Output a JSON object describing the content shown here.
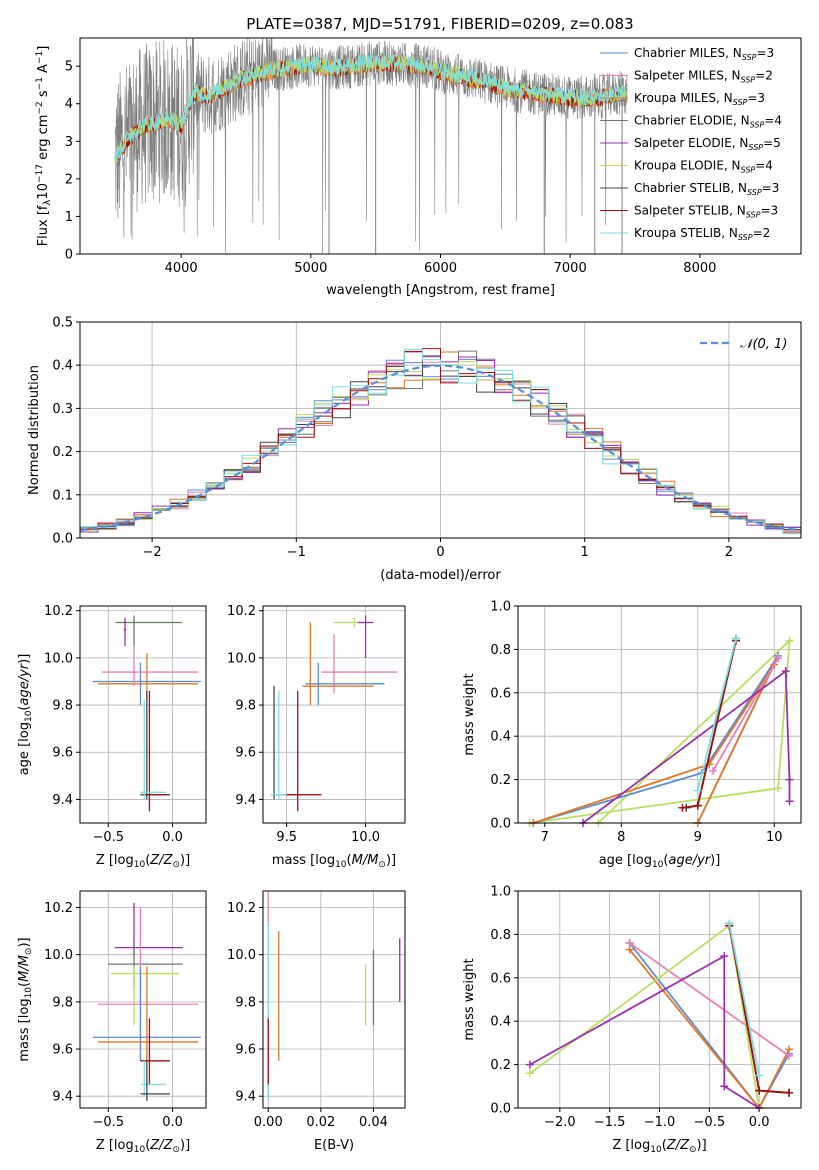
{
  "figure_title": "PLATE=0387, MJD=51791, FIBERID=0209, z=0.083",
  "colors": {
    "chabrier_miles": "#5B8DD6",
    "salpeter_miles": "#E880B8",
    "kroupa_miles": "#E07828",
    "chabrier_elodie": "#6B7B6B",
    "salpeter_elodie": "#9A2FB0",
    "kroupa_elodie": "#B8E060",
    "chabrier_stelib": "#444444",
    "salpeter_stelib": "#A01010",
    "kroupa_stelib": "#80DDE0",
    "noise": "#808080"
  },
  "chart_data": [
    {
      "id": "spectrum",
      "type": "line",
      "xlabel": "wavelength [Angstrom, rest frame]",
      "ylabel": "Flux [f_λ10^-17 erg cm^-2 s^-1 A^-1]",
      "xlim": [
        3220,
        8780
      ],
      "ylim": [
        0,
        5.75
      ],
      "xticks": [
        4000,
        5000,
        6000,
        7000,
        8000
      ],
      "yticks": [
        0,
        1,
        2,
        3,
        4,
        5
      ],
      "legend": "top-right",
      "legend_entries": [
        {
          "label": "Chabrier MILES, N_SSP=3",
          "color": "#5B8DD6"
        },
        {
          "label": "Salpeter MILES, N_SSP=2",
          "color": "#E880B8"
        },
        {
          "label": "Kroupa MILES, N_SSP=3",
          "color": "#E07828"
        },
        {
          "label": "Chabrier ELODIE, N_SSP=4",
          "color": "#6B7B6B"
        },
        {
          "label": "Salpeter ELODIE, N_SSP=5",
          "color": "#9A2FB0"
        },
        {
          "label": "Kroupa ELODIE, N_SSP=4",
          "color": "#B8E060"
        },
        {
          "label": "Chabrier STELIB, N_SSP=3",
          "color": "#444444"
        },
        {
          "label": "Salpeter STELIB, N_SSP=3",
          "color": "#A01010"
        },
        {
          "label": "Kroupa STELIB, N_SSP=2",
          "color": "#80DDE0"
        }
      ],
      "model_continuum": {
        "x": [
          3500,
          3600,
          3700,
          3800,
          3900,
          4000,
          4100,
          4200,
          4300,
          4400,
          4500,
          4700,
          4900,
          5000,
          5200,
          5400,
          5500,
          5700,
          5900,
          6000,
          6200,
          6400,
          6500,
          6700,
          6900,
          7000,
          7200,
          7400
        ],
        "y": [
          2.6,
          3.1,
          3.4,
          3.5,
          3.6,
          3.4,
          4.3,
          4.2,
          4.35,
          4.55,
          4.7,
          4.9,
          5.0,
          5.05,
          4.95,
          5.05,
          5.1,
          5.05,
          5.0,
          4.85,
          4.7,
          4.55,
          4.4,
          4.3,
          4.2,
          4.15,
          4.15,
          4.3
        ]
      }
    },
    {
      "id": "residuals",
      "type": "line",
      "xlabel": "(data-model)/error",
      "ylabel": "Normed distribution",
      "xlim": [
        -2.5,
        2.5
      ],
      "ylim": [
        0,
        0.5
      ],
      "xticks": [
        -2,
        -1,
        0,
        1,
        2
      ],
      "xtick_labels": [
        "−2",
        "−1",
        "0",
        "1",
        "2"
      ],
      "yticks": [
        0.0,
        0.1,
        0.2,
        0.3,
        0.4,
        0.5
      ],
      "ytick_labels": [
        "0.0",
        "0.1",
        "0.2",
        "0.3",
        "0.4",
        "0.5"
      ],
      "gaussian_label": "𝒩(0, 1)",
      "gaussian_color": "#5B8DD6",
      "legend": "top-right"
    },
    {
      "id": "age_vs_Z",
      "type": "scatter",
      "xlabel": "Z [log10(Z/Z⊙)]",
      "ylabel": "age [log10(age/yr)]",
      "xlim": [
        -0.72,
        0.26
      ],
      "ylim": [
        9.3,
        10.22
      ],
      "xticks": [
        -0.5,
        0.0
      ],
      "xtick_labels": [
        "−0.5",
        "0.0"
      ],
      "yticks": [
        9.4,
        9.6,
        9.8,
        10.0,
        10.2
      ],
      "ytick_labels": [
        "9.4",
        "9.6",
        "9.8",
        "10.0",
        "10.2"
      ]
    },
    {
      "id": "age_vs_mass",
      "type": "scatter",
      "xlabel": "mass [log10(M/M⊙)]",
      "xlim": [
        9.35,
        10.25
      ],
      "ylim": [
        9.3,
        10.22
      ],
      "xticks": [
        9.5,
        10.0
      ],
      "xtick_labels": [
        "9.5",
        "10.0"
      ],
      "yticks": [
        9.4,
        9.6,
        9.8,
        10.0,
        10.2
      ],
      "ytick_labels": [
        "9.4",
        "9.6",
        "9.8",
        "10.0",
        "10.2"
      ]
    },
    {
      "id": "massweight_vs_age",
      "type": "line",
      "xlabel": "age [log10(age/yr)]",
      "ylabel": "mass weight",
      "xlim": [
        6.65,
        10.35
      ],
      "ylim": [
        0,
        1
      ],
      "xticks": [
        7,
        8,
        9,
        10
      ],
      "xtick_labels": [
        "7",
        "8",
        "9",
        "10"
      ],
      "yticks": [
        0,
        0.2,
        0.4,
        0.6,
        0.8,
        1.0
      ],
      "ytick_labels": [
        "0.0",
        "0.2",
        "0.4",
        "0.6",
        "0.8",
        "1.0"
      ],
      "series": [
        {
          "key": "kroupa_elodie",
          "x": [
            6.8,
            10.05,
            10.2,
            7.7
          ],
          "y": [
            0.0,
            0.16,
            0.84,
            0.0
          ]
        },
        {
          "key": "chabrier_miles",
          "x": [
            6.85,
            9.05,
            10.05,
            9.0
          ],
          "y": [
            0.0,
            0.23,
            0.77,
            0.0
          ]
        },
        {
          "key": "kroupa_miles",
          "x": [
            6.85,
            9.15,
            10.0,
            9.0
          ],
          "y": [
            0.0,
            0.27,
            0.73,
            0.0
          ]
        },
        {
          "key": "salpeter_miles",
          "x": [
            9.2,
            10.05
          ],
          "y": [
            0.24,
            0.76
          ]
        },
        {
          "key": "salpeter_elodie",
          "x": [
            7.5,
            10.15,
            10.2,
            10.2
          ],
          "y": [
            0.0,
            0.7,
            0.2,
            0.1
          ]
        },
        {
          "key": "chabrier_stelib",
          "x": [
            8.85,
            9.0,
            9.5
          ],
          "y": [
            0.07,
            0.08,
            0.85
          ]
        },
        {
          "key": "salpeter_stelib",
          "x": [
            8.8,
            9.0,
            9.5
          ],
          "y": [
            0.07,
            0.08,
            0.84
          ]
        },
        {
          "key": "kroupa_stelib",
          "x": [
            9.0,
            9.5
          ],
          "y": [
            0.15,
            0.85
          ]
        }
      ]
    },
    {
      "id": "mass_vs_Z",
      "type": "scatter",
      "xlabel": "Z [log10(Z/Z⊙)]",
      "ylabel": "mass [log10(M/M⊙)]",
      "xlim": [
        -0.72,
        0.26
      ],
      "ylim": [
        9.35,
        10.27
      ],
      "xticks": [
        -0.5,
        0.0
      ],
      "xtick_labels": [
        "−0.5",
        "0.0"
      ],
      "yticks": [
        9.4,
        9.6,
        9.8,
        10.0,
        10.2
      ],
      "ytick_labels": [
        "9.4",
        "9.6",
        "9.8",
        "10.0",
        "10.2"
      ]
    },
    {
      "id": "mass_vs_ebv",
      "type": "scatter",
      "xlabel": "E(B-V)",
      "xlim": [
        -0.002,
        0.052
      ],
      "ylim": [
        9.35,
        10.27
      ],
      "xticks": [
        0.0,
        0.02,
        0.04
      ],
      "xtick_labels": [
        "0.00",
        "0.02",
        "0.04"
      ],
      "yticks": [
        9.4,
        9.6,
        9.8,
        10.0,
        10.2
      ],
      "ytick_labels": [
        "9.4",
        "9.6",
        "9.8",
        "10.0",
        "10.2"
      ]
    },
    {
      "id": "massweight_vs_Z",
      "type": "line",
      "xlabel": "Z [log10(Z/Z⊙)]",
      "ylabel": "mass weight",
      "xlim": [
        -2.42,
        0.42
      ],
      "ylim": [
        0,
        1
      ],
      "xticks": [
        -2.0,
        -1.5,
        -1.0,
        -0.5,
        0.0
      ],
      "xtick_labels": [
        "−2.0",
        "−1.5",
        "−1.0",
        "−0.5",
        "0.0"
      ],
      "yticks": [
        0,
        0.2,
        0.4,
        0.6,
        0.8,
        1.0
      ],
      "ytick_labels": [
        "0.0",
        "0.2",
        "0.4",
        "0.6",
        "0.8",
        "1.0"
      ],
      "series": [
        {
          "key": "chabrier_miles",
          "x": [
            -1.3,
            0.0,
            0.3
          ],
          "y": [
            0.76,
            0.0,
            0.25
          ]
        },
        {
          "key": "kroupa_miles",
          "x": [
            -1.3,
            0.0,
            0.3
          ],
          "y": [
            0.73,
            0.0,
            0.27
          ]
        },
        {
          "key": "salpeter_miles",
          "x": [
            -1.3,
            0.3
          ],
          "y": [
            0.76,
            0.24
          ]
        },
        {
          "key": "kroupa_elodie",
          "x": [
            -2.3,
            -0.3,
            0.0
          ],
          "y": [
            0.16,
            0.84,
            0.0
          ]
        },
        {
          "key": "salpeter_elodie",
          "x": [
            -2.3,
            -0.35,
            -0.35,
            0.0
          ],
          "y": [
            0.2,
            0.7,
            0.1,
            0.0
          ]
        },
        {
          "key": "chabrier_stelib",
          "x": [
            -0.3,
            0.0,
            0.3
          ],
          "y": [
            0.85,
            0.08,
            0.07
          ]
        },
        {
          "key": "salpeter_stelib",
          "x": [
            -0.3,
            0.0,
            0.3
          ],
          "y": [
            0.84,
            0.08,
            0.07
          ]
        },
        {
          "key": "kroupa_stelib",
          "x": [
            -0.3,
            0.0
          ],
          "y": [
            0.85,
            0.15
          ]
        }
      ]
    }
  ]
}
